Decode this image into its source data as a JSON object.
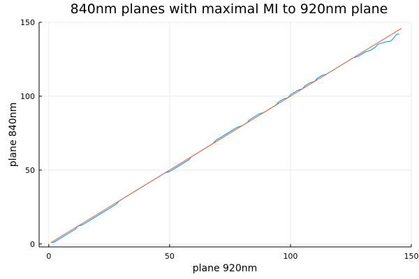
{
  "chart_data": {
    "type": "line",
    "title": "840nm planes with maximal MI to 920nm plane",
    "xlabel": "plane 920nm",
    "ylabel": "plane 840nm",
    "xlim": [
      -4,
      150
    ],
    "ylim": [
      -2,
      150
    ],
    "xticks": [
      0,
      50,
      100,
      150
    ],
    "yticks": [
      0,
      50,
      100,
      150
    ],
    "grid": true,
    "legend": "none",
    "series": [
      {
        "color": "#009AFA",
        "x": [
          1,
          2,
          3,
          5,
          8,
          11,
          12,
          14,
          18,
          22,
          25,
          28,
          29,
          31,
          33,
          35,
          38,
          41,
          43,
          44,
          46,
          48,
          50,
          52,
          54,
          56,
          58,
          59,
          61,
          63,
          64,
          66,
          68,
          69,
          71,
          72,
          74,
          76,
          78,
          80,
          82,
          83,
          85,
          87,
          89,
          90,
          92,
          94,
          95,
          97,
          99,
          100,
          102,
          103,
          105,
          106,
          108,
          110,
          111,
          113,
          115,
          117,
          119,
          121,
          122,
          124,
          126,
          128,
          129,
          131,
          133,
          135,
          136,
          138,
          140,
          141,
          142,
          143,
          144,
          145
        ],
        "y": [
          1,
          1,
          2,
          4,
          7,
          10,
          12,
          13,
          17,
          21,
          24,
          27,
          29,
          31,
          33,
          35,
          38,
          41,
          43,
          44,
          46,
          48,
          49,
          51,
          53,
          55,
          57,
          59,
          61,
          63,
          64,
          66,
          68,
          70,
          72,
          73,
          75,
          77,
          79,
          80,
          82,
          84,
          86,
          88,
          89,
          90,
          92,
          94,
          96,
          98,
          99,
          101,
          103,
          104,
          105,
          107,
          109,
          110,
          112,
          114,
          115,
          117,
          119,
          121,
          122,
          124,
          126,
          127,
          128,
          130,
          131,
          133,
          135,
          136,
          137,
          137,
          138,
          140,
          142,
          142
        ]
      },
      {
        "color": "#E26F46",
        "x": [
          1,
          146
        ],
        "y": [
          1,
          146
        ]
      }
    ]
  }
}
